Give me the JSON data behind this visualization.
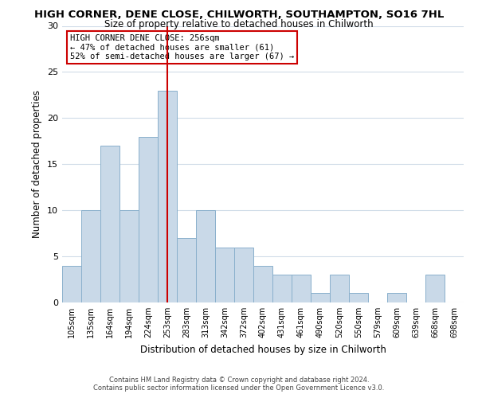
{
  "title": "HIGH CORNER, DENE CLOSE, CHILWORTH, SOUTHAMPTON, SO16 7HL",
  "subtitle": "Size of property relative to detached houses in Chilworth",
  "xlabel": "Distribution of detached houses by size in Chilworth",
  "ylabel": "Number of detached properties",
  "bar_labels": [
    "105sqm",
    "135sqm",
    "164sqm",
    "194sqm",
    "224sqm",
    "253sqm",
    "283sqm",
    "313sqm",
    "342sqm",
    "372sqm",
    "402sqm",
    "431sqm",
    "461sqm",
    "490sqm",
    "520sqm",
    "550sqm",
    "579sqm",
    "609sqm",
    "639sqm",
    "668sqm",
    "698sqm"
  ],
  "bar_values": [
    4,
    10,
    17,
    10,
    18,
    23,
    7,
    10,
    6,
    6,
    4,
    3,
    3,
    1,
    3,
    1,
    0,
    1,
    0,
    3,
    0
  ],
  "bar_color": "#c9d9e8",
  "bar_edge_color": "#8ab0cc",
  "vline_x": 5,
  "vline_color": "#cc0000",
  "ylim": [
    0,
    30
  ],
  "yticks": [
    0,
    5,
    10,
    15,
    20,
    25,
    30
  ],
  "annotation_title": "HIGH CORNER DENE CLOSE: 256sqm",
  "annotation_line1": "← 47% of detached houses are smaller (61)",
  "annotation_line2": "52% of semi-detached houses are larger (67) →",
  "annotation_box_color": "#ffffff",
  "annotation_box_edge": "#cc0000",
  "footer_line1": "Contains HM Land Registry data © Crown copyright and database right 2024.",
  "footer_line2": "Contains public sector information licensed under the Open Government Licence v3.0.",
  "background_color": "#ffffff",
  "grid_color": "#d0dce8"
}
